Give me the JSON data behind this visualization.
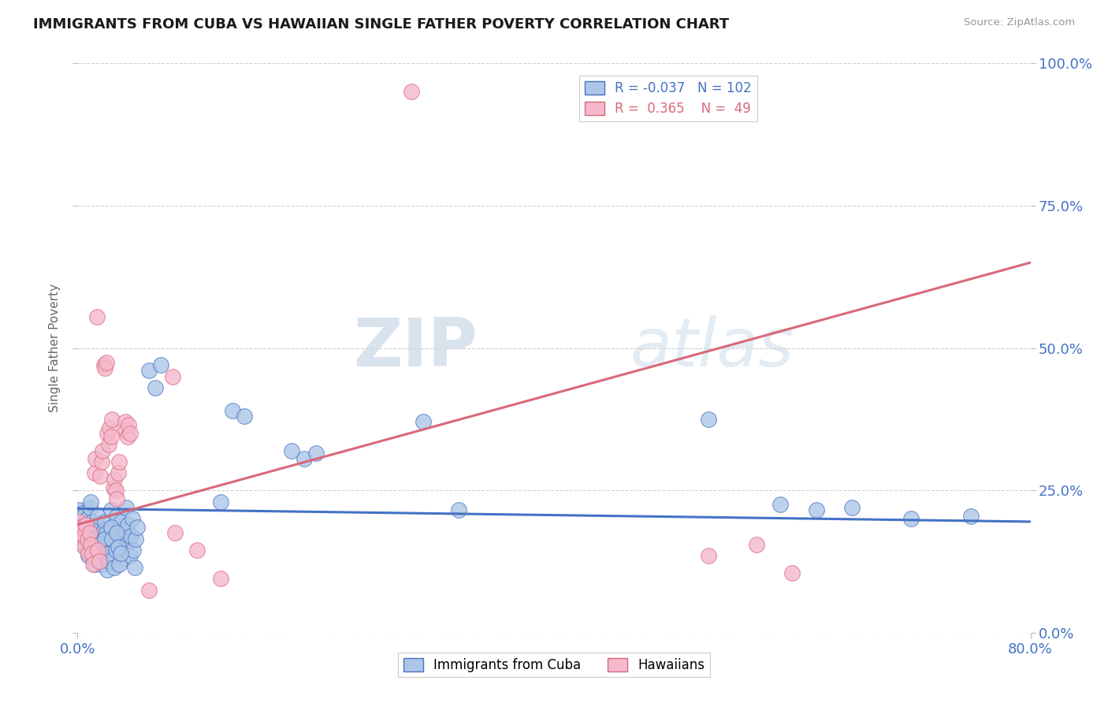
{
  "title": "IMMIGRANTS FROM CUBA VS HAWAIIAN SINGLE FATHER POVERTY CORRELATION CHART",
  "source": "Source: ZipAtlas.com",
  "ylabel": "Single Father Poverty",
  "legend_labels": [
    "Immigrants from Cuba",
    "Hawaiians"
  ],
  "legend_R": [
    "-0.037",
    "0.365"
  ],
  "legend_N": [
    "102",
    "49"
  ],
  "blue_color": "#adc6e8",
  "pink_color": "#f5b8cc",
  "blue_line_color": "#4472c4",
  "pink_line_color": "#d9687a",
  "blue_scatter": [
    [
      0.001,
      0.215
    ],
    [
      0.002,
      0.2
    ],
    [
      0.003,
      0.195
    ],
    [
      0.004,
      0.21
    ],
    [
      0.005,
      0.205
    ],
    [
      0.006,
      0.19
    ],
    [
      0.007,
      0.185
    ],
    [
      0.008,
      0.2
    ],
    [
      0.009,
      0.175
    ],
    [
      0.01,
      0.22
    ],
    [
      0.011,
      0.23
    ],
    [
      0.012,
      0.195
    ],
    [
      0.013,
      0.185
    ],
    [
      0.014,
      0.16
    ],
    [
      0.015,
      0.175
    ],
    [
      0.016,
      0.19
    ],
    [
      0.017,
      0.205
    ],
    [
      0.018,
      0.155
    ],
    [
      0.019,
      0.17
    ],
    [
      0.02,
      0.145
    ],
    [
      0.021,
      0.16
    ],
    [
      0.022,
      0.18
    ],
    [
      0.023,
      0.195
    ],
    [
      0.024,
      0.175
    ],
    [
      0.025,
      0.135
    ],
    [
      0.026,
      0.15
    ],
    [
      0.027,
      0.165
    ],
    [
      0.028,
      0.215
    ],
    [
      0.029,
      0.185
    ],
    [
      0.03,
      0.155
    ],
    [
      0.031,
      0.14
    ],
    [
      0.032,
      0.17
    ],
    [
      0.033,
      0.205
    ],
    [
      0.034,
      0.18
    ],
    [
      0.035,
      0.15
    ],
    [
      0.036,
      0.165
    ],
    [
      0.037,
      0.195
    ],
    [
      0.038,
      0.13
    ],
    [
      0.039,
      0.155
    ],
    [
      0.04,
      0.18
    ],
    [
      0.041,
      0.22
    ],
    [
      0.042,
      0.19
    ],
    [
      0.043,
      0.16
    ],
    [
      0.044,
      0.135
    ],
    [
      0.045,
      0.17
    ],
    [
      0.046,
      0.2
    ],
    [
      0.047,
      0.145
    ],
    [
      0.048,
      0.115
    ],
    [
      0.049,
      0.165
    ],
    [
      0.05,
      0.185
    ],
    [
      0.003,
      0.175
    ],
    [
      0.004,
      0.165
    ],
    [
      0.005,
      0.155
    ],
    [
      0.006,
      0.17
    ],
    [
      0.007,
      0.16
    ],
    [
      0.008,
      0.145
    ],
    [
      0.009,
      0.135
    ],
    [
      0.01,
      0.165
    ],
    [
      0.011,
      0.155
    ],
    [
      0.012,
      0.145
    ],
    [
      0.013,
      0.13
    ],
    [
      0.014,
      0.12
    ],
    [
      0.015,
      0.145
    ],
    [
      0.016,
      0.135
    ],
    [
      0.017,
      0.155
    ],
    [
      0.018,
      0.125
    ],
    [
      0.019,
      0.14
    ],
    [
      0.02,
      0.12
    ],
    [
      0.021,
      0.135
    ],
    [
      0.022,
      0.15
    ],
    [
      0.023,
      0.165
    ],
    [
      0.024,
      0.14
    ],
    [
      0.025,
      0.11
    ],
    [
      0.026,
      0.125
    ],
    [
      0.027,
      0.14
    ],
    [
      0.028,
      0.185
    ],
    [
      0.029,
      0.165
    ],
    [
      0.03,
      0.13
    ],
    [
      0.031,
      0.115
    ],
    [
      0.032,
      0.145
    ],
    [
      0.033,
      0.175
    ],
    [
      0.034,
      0.15
    ],
    [
      0.035,
      0.12
    ],
    [
      0.036,
      0.14
    ],
    [
      0.06,
      0.46
    ],
    [
      0.065,
      0.43
    ],
    [
      0.07,
      0.47
    ],
    [
      0.12,
      0.23
    ],
    [
      0.13,
      0.39
    ],
    [
      0.14,
      0.38
    ],
    [
      0.18,
      0.32
    ],
    [
      0.19,
      0.305
    ],
    [
      0.2,
      0.315
    ],
    [
      0.29,
      0.37
    ],
    [
      0.32,
      0.215
    ],
    [
      0.53,
      0.375
    ],
    [
      0.59,
      0.225
    ],
    [
      0.62,
      0.215
    ],
    [
      0.65,
      0.22
    ],
    [
      0.7,
      0.2
    ],
    [
      0.75,
      0.205
    ]
  ],
  "pink_scatter": [
    [
      0.001,
      0.195
    ],
    [
      0.002,
      0.175
    ],
    [
      0.003,
      0.16
    ],
    [
      0.004,
      0.185
    ],
    [
      0.005,
      0.17
    ],
    [
      0.006,
      0.15
    ],
    [
      0.007,
      0.19
    ],
    [
      0.008,
      0.165
    ],
    [
      0.009,
      0.14
    ],
    [
      0.01,
      0.175
    ],
    [
      0.011,
      0.155
    ],
    [
      0.012,
      0.14
    ],
    [
      0.013,
      0.12
    ],
    [
      0.014,
      0.28
    ],
    [
      0.015,
      0.305
    ],
    [
      0.016,
      0.555
    ],
    [
      0.017,
      0.145
    ],
    [
      0.018,
      0.125
    ],
    [
      0.019,
      0.275
    ],
    [
      0.02,
      0.3
    ],
    [
      0.021,
      0.32
    ],
    [
      0.022,
      0.47
    ],
    [
      0.023,
      0.465
    ],
    [
      0.024,
      0.475
    ],
    [
      0.025,
      0.35
    ],
    [
      0.026,
      0.33
    ],
    [
      0.027,
      0.36
    ],
    [
      0.028,
      0.345
    ],
    [
      0.029,
      0.375
    ],
    [
      0.03,
      0.255
    ],
    [
      0.031,
      0.27
    ],
    [
      0.032,
      0.25
    ],
    [
      0.033,
      0.235
    ],
    [
      0.034,
      0.28
    ],
    [
      0.035,
      0.3
    ],
    [
      0.04,
      0.37
    ],
    [
      0.041,
      0.355
    ],
    [
      0.042,
      0.345
    ],
    [
      0.043,
      0.365
    ],
    [
      0.044,
      0.35
    ],
    [
      0.06,
      0.075
    ],
    [
      0.08,
      0.45
    ],
    [
      0.082,
      0.175
    ],
    [
      0.1,
      0.145
    ],
    [
      0.12,
      0.095
    ],
    [
      0.28,
      0.95
    ],
    [
      0.53,
      0.135
    ],
    [
      0.57,
      0.155
    ],
    [
      0.6,
      0.105
    ]
  ],
  "xlim": [
    0.0,
    0.8
  ],
  "ylim": [
    0.0,
    1.0
  ],
  "ytick_vals": [
    0.0,
    0.25,
    0.5,
    0.75,
    1.0
  ],
  "ytick_labels": [
    "0.0%",
    "25.0%",
    "50.0%",
    "75.0%",
    "100.0%"
  ],
  "xtick_left_label": "0.0%",
  "xtick_right_label": "80.0%",
  "watermark_zip": "ZIP",
  "watermark_atlas": "atlas",
  "background_color": "#ffffff",
  "grid_color": "#cccccc",
  "blue_trend": [
    0.218,
    0.195
  ],
  "pink_trend": [
    0.19,
    0.65
  ]
}
